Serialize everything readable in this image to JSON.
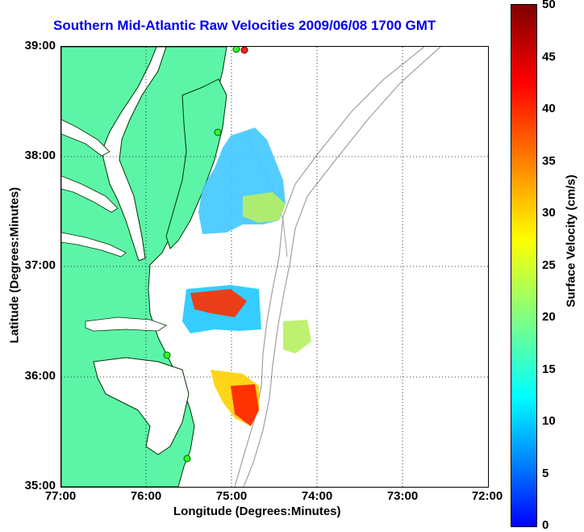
{
  "title": "Southern Mid-Atlantic Raw Velocities 2009/06/08 1700 GMT",
  "axes": {
    "xlabel": "Longitude (Degrees:Minutes)",
    "ylabel": "Latitude (Degrees:Minutes)",
    "lat_ticks": [
      "39:00",
      "38:00",
      "37:00",
      "36:00",
      "35:00"
    ],
    "lon_ticks": [
      "77:00",
      "76:00",
      "75:00",
      "74:00",
      "73:00",
      "72:00"
    ]
  },
  "colorbar": {
    "label": "Surface Velocity (cm/s)",
    "ticks": [
      "50",
      "45",
      "40",
      "35",
      "30",
      "25",
      "20",
      "15",
      "10",
      "5",
      "0"
    ],
    "min": 0,
    "max": 50
  },
  "colors": {
    "land": "#5cf5a8",
    "title": "#0000ee",
    "bathymetry": "#a0a0a0",
    "grid": "#000000"
  },
  "map": {
    "lat_range": [
      35,
      39
    ],
    "lon_range": [
      -77,
      -72
    ],
    "grid": "dotted",
    "stations_green": 4,
    "stations_red": 1
  }
}
